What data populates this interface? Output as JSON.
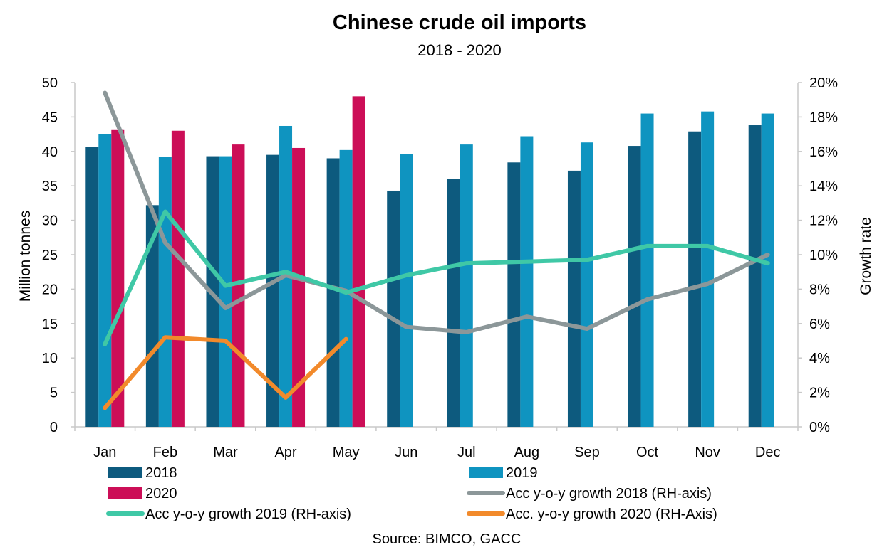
{
  "chart_data": {
    "type": "bar",
    "title": "Chinese crude oil imports",
    "subtitle": "2018 - 2020",
    "ylabel": "Million tonnes",
    "y2label": "Growth rate",
    "source": "Source: BIMCO, GACC",
    "categories": [
      "Jan",
      "Feb",
      "Mar",
      "Apr",
      "May",
      "Jun",
      "Jul",
      "Aug",
      "Sep",
      "Oct",
      "Nov",
      "Dec"
    ],
    "ylim": [
      0,
      50
    ],
    "y2lim": [
      0,
      0.2
    ],
    "yticks": [
      "0",
      "5",
      "10",
      "15",
      "20",
      "25",
      "30",
      "35",
      "40",
      "45",
      "50"
    ],
    "y2ticks": [
      "0%",
      "2%",
      "4%",
      "6%",
      "8%",
      "10%",
      "12%",
      "14%",
      "16%",
      "18%",
      "20%"
    ],
    "bar_series": [
      {
        "name": "2018",
        "color": "#0d5a7e",
        "values": [
          40.6,
          32.2,
          39.3,
          39.5,
          39.0,
          34.3,
          36.0,
          38.4,
          37.2,
          40.8,
          42.9,
          43.8
        ]
      },
      {
        "name": "2019",
        "color": "#0f94c0",
        "values": [
          42.5,
          39.2,
          39.3,
          43.7,
          40.2,
          39.6,
          41.0,
          42.2,
          41.3,
          45.5,
          45.8,
          45.5
        ]
      },
      {
        "name": "2020",
        "color": "#cc0e57",
        "values": [
          43.1,
          43.0,
          41.0,
          40.5,
          48.0,
          null,
          null,
          null,
          null,
          null,
          null,
          null
        ]
      }
    ],
    "line_series": [
      {
        "name": "Acc y-o-y growth 2018 (RH-axis)",
        "color": "#8c9799",
        "values": [
          0.194,
          0.107,
          0.069,
          0.088,
          0.079,
          0.058,
          0.055,
          0.064,
          0.057,
          0.074,
          0.083,
          0.1
        ]
      },
      {
        "name": "Acc y-o-y growth 2019 (RH-axis)",
        "color": "#3fc8a6",
        "values": [
          0.048,
          0.125,
          0.082,
          0.09,
          0.078,
          0.088,
          0.095,
          0.096,
          0.097,
          0.105,
          0.105,
          0.095
        ]
      },
      {
        "name": "Acc. y-o-y growth 2020 (RH-Axis)",
        "color": "#f28a2b",
        "values": [
          0.011,
          0.052,
          0.05,
          0.017,
          0.051,
          null,
          null,
          null,
          null,
          null,
          null,
          null
        ]
      }
    ],
    "legend": [
      {
        "label": "2018",
        "kind": "bar",
        "color": "#0d5a7e"
      },
      {
        "label": "2019",
        "kind": "bar",
        "color": "#0f94c0"
      },
      {
        "label": "2020",
        "kind": "bar",
        "color": "#cc0e57"
      },
      {
        "label": "Acc y-o-y growth 2018 (RH-axis)",
        "kind": "line",
        "color": "#8c9799"
      },
      {
        "label": "Acc y-o-y growth 2019 (RH-axis)",
        "kind": "line",
        "color": "#3fc8a6"
      },
      {
        "label": "Acc. y-o-y growth 2020 (RH-Axis)",
        "kind": "line",
        "color": "#f28a2b"
      }
    ],
    "grid": false,
    "legend_position": "bottom"
  }
}
